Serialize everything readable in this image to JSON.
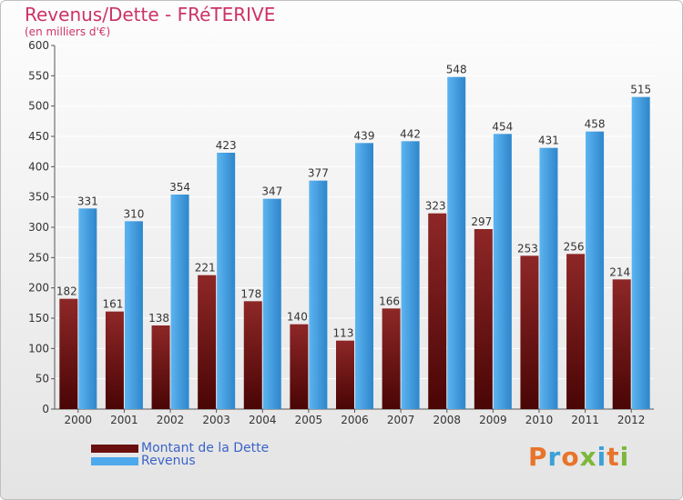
{
  "chart_data": {
    "type": "bar",
    "title": "Revenus/Dette - FRéTERIVE",
    "subtitle": "(en milliers d'€)",
    "categories": [
      "2000",
      "2001",
      "2002",
      "2003",
      "2004",
      "2005",
      "2006",
      "2007",
      "2008",
      "2009",
      "2010",
      "2011",
      "2012"
    ],
    "series": [
      {
        "name": "Montant de la Dette",
        "color": "#7a1a1a",
        "values": [
          182,
          161,
          138,
          221,
          178,
          140,
          113,
          166,
          323,
          297,
          253,
          256,
          214
        ]
      },
      {
        "name": "Revenus",
        "color": "#4ea8ec",
        "values": [
          331,
          310,
          354,
          423,
          347,
          377,
          439,
          442,
          548,
          454,
          431,
          458,
          515
        ]
      }
    ],
    "ylim": [
      0,
      600
    ],
    "yticks": [
      0,
      50,
      100,
      150,
      200,
      250,
      300,
      350,
      400,
      450,
      500,
      550,
      600
    ],
    "grid": true,
    "legend_position": "bottom-left"
  },
  "logo": {
    "text": "Proxiti",
    "colors": [
      "#e8742a",
      "#3ca0d8",
      "#e8742a",
      "#7cb83a",
      "#3ca0d8",
      "#e8742a",
      "#7cb83a"
    ]
  }
}
